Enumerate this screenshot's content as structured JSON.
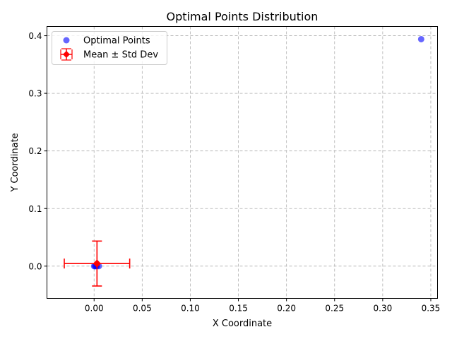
{
  "chart_data": {
    "type": "scatter",
    "title": "Optimal Points Distribution",
    "xlabel": "X Coordinate",
    "ylabel": "Y Coordinate",
    "xlim": [
      -0.049,
      0.357
    ],
    "ylim": [
      -0.056,
      0.416
    ],
    "xticks": [
      0.0,
      0.05,
      0.1,
      0.15,
      0.2,
      0.25,
      0.3,
      0.35
    ],
    "xtick_labels": [
      "0.00",
      "0.05",
      "0.10",
      "0.15",
      "0.20",
      "0.25",
      "0.30",
      "0.35"
    ],
    "yticks": [
      0.0,
      0.1,
      0.2,
      0.3,
      0.4
    ],
    "ytick_labels": [
      "0.0",
      "0.1",
      "0.2",
      "0.3",
      "0.4"
    ],
    "grid": true,
    "legend_position": "top-left",
    "series": [
      {
        "name": "Optimal Points",
        "kind": "scatter",
        "color": "#0000ff",
        "points": [
          {
            "x": 0.0,
            "y": 0.0
          },
          {
            "x": 0.001,
            "y": 0.0
          },
          {
            "x": 0.002,
            "y": 0.0
          },
          {
            "x": 0.003,
            "y": 0.0
          },
          {
            "x": 0.005,
            "y": 0.0
          },
          {
            "x": 0.34,
            "y": 0.394
          }
        ]
      },
      {
        "name": "Mean ± Std Dev",
        "kind": "errorbar",
        "color": "#ff0000",
        "x": 0.003,
        "y": 0.0045,
        "x_err": 0.034,
        "y_err": 0.039
      }
    ]
  }
}
